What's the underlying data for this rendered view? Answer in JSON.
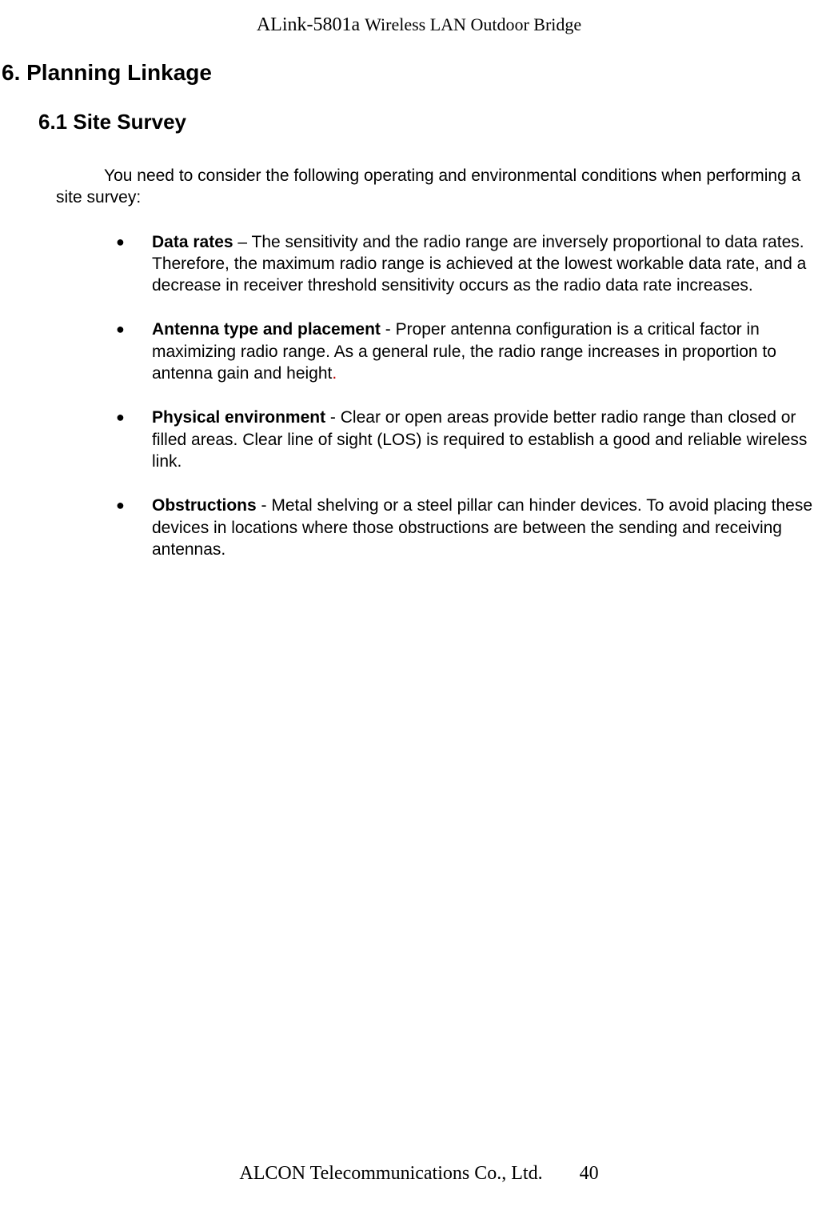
{
  "header": {
    "model": "ALink-5801a",
    "subtitle": "Wireless LAN Outdoor Bridge"
  },
  "heading1": "6. Planning Linkage",
  "heading2": "6.1 Site Survey",
  "intro": "You need to consider the following operating and environmental conditions when performing a site survey:",
  "bullets": [
    {
      "title": "Data rates",
      "separator": " – ",
      "text": "The sensitivity and the radio range are inversely proportional to data rates.    Therefore, the maximum radio range is achieved at the lowest workable data rate, and a decrease in receiver threshold sensitivity occurs as the radio data rate increases."
    },
    {
      "title": "Antenna type and placement",
      "separator": " - ",
      "text": "Proper antenna configuration is a critical factor in maximizing radio range.    As a general rule, the radio range increases in proportion to antenna gain and height",
      "redPeriod": "."
    },
    {
      "title": "Physical environment",
      "separator": " - ",
      "text": "Clear or open areas provide better radio range than closed or filled areas.    Clear line of sight (LOS) is required to establish a good and reliable wireless link."
    },
    {
      "title": "Obstructions",
      "separator": " - ",
      "text": "Metal shelving or a steel pillar can hinder devices.    To avoid placing these devices in locations where those obstructions are between the sending and receiving antennas."
    }
  ],
  "footer": {
    "company": "ALCON Telecommunications Co., Ltd.",
    "pageNumber": "40"
  },
  "bulletMarker": "●"
}
